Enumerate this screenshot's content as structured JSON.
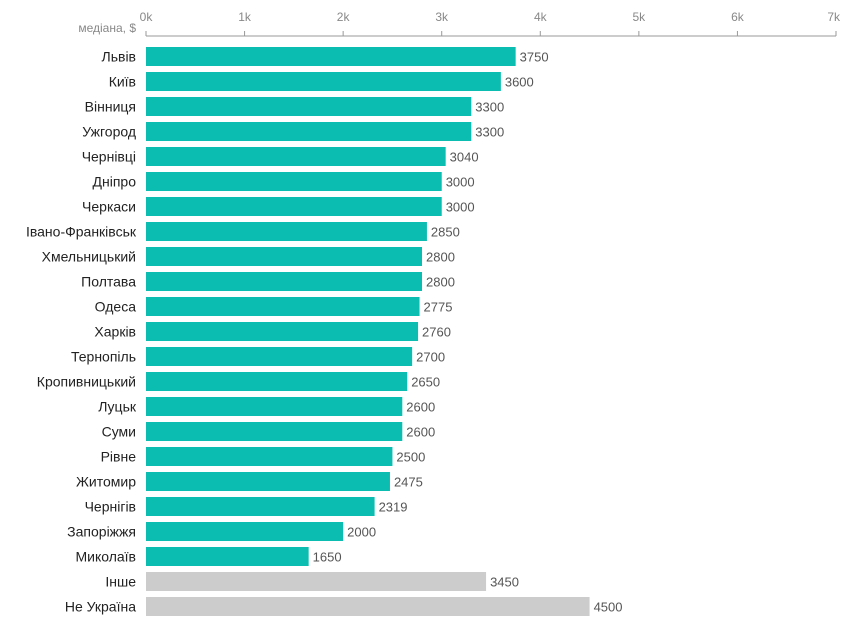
{
  "chart_data": {
    "type": "bar",
    "orientation": "horizontal",
    "axis_title": "медіана, $",
    "xlim": [
      0,
      7000
    ],
    "ticks": [
      0,
      1000,
      2000,
      3000,
      4000,
      5000,
      6000,
      7000
    ],
    "tick_labels": [
      "0k",
      "1k",
      "2k",
      "3k",
      "4k",
      "5k",
      "6k",
      "7k"
    ],
    "categories": [
      "Львів",
      "Київ",
      "Вінниця",
      "Ужгород",
      "Чернівці",
      "Дніпро",
      "Черкаси",
      "Івано-Франківськ",
      "Хмельницький",
      "Полтава",
      "Одеса",
      "Харків",
      "Тернопіль",
      "Кропивницький",
      "Луцьк",
      "Суми",
      "Рівне",
      "Житомир",
      "Чернігів",
      "Запоріжжя",
      "Миколаїв",
      "Інше",
      "Не Україна"
    ],
    "values": [
      3750,
      3600,
      3300,
      3300,
      3040,
      3000,
      3000,
      2850,
      2800,
      2800,
      2775,
      2760,
      2700,
      2650,
      2600,
      2600,
      2500,
      2475,
      2319,
      2000,
      1650,
      3450,
      4500
    ],
    "value_labels": [
      "3750",
      "3600",
      "3300",
      "3300",
      "3040",
      "3000",
      "3000",
      "2850",
      "2800",
      "2800",
      "2775",
      "2760",
      "2700",
      "2650",
      "2600",
      "2600",
      "2500",
      "2475",
      "2319",
      "2000",
      "1650",
      "3450",
      "4500"
    ],
    "bar_colors": [
      "#0bbcb0",
      "#0bbcb0",
      "#0bbcb0",
      "#0bbcb0",
      "#0bbcb0",
      "#0bbcb0",
      "#0bbcb0",
      "#0bbcb0",
      "#0bbcb0",
      "#0bbcb0",
      "#0bbcb0",
      "#0bbcb0",
      "#0bbcb0",
      "#0bbcb0",
      "#0bbcb0",
      "#0bbcb0",
      "#0bbcb0",
      "#0bbcb0",
      "#0bbcb0",
      "#0bbcb0",
      "#0bbcb0",
      "#cccccc",
      "#cccccc"
    ],
    "grid": false,
    "legend": "none"
  }
}
